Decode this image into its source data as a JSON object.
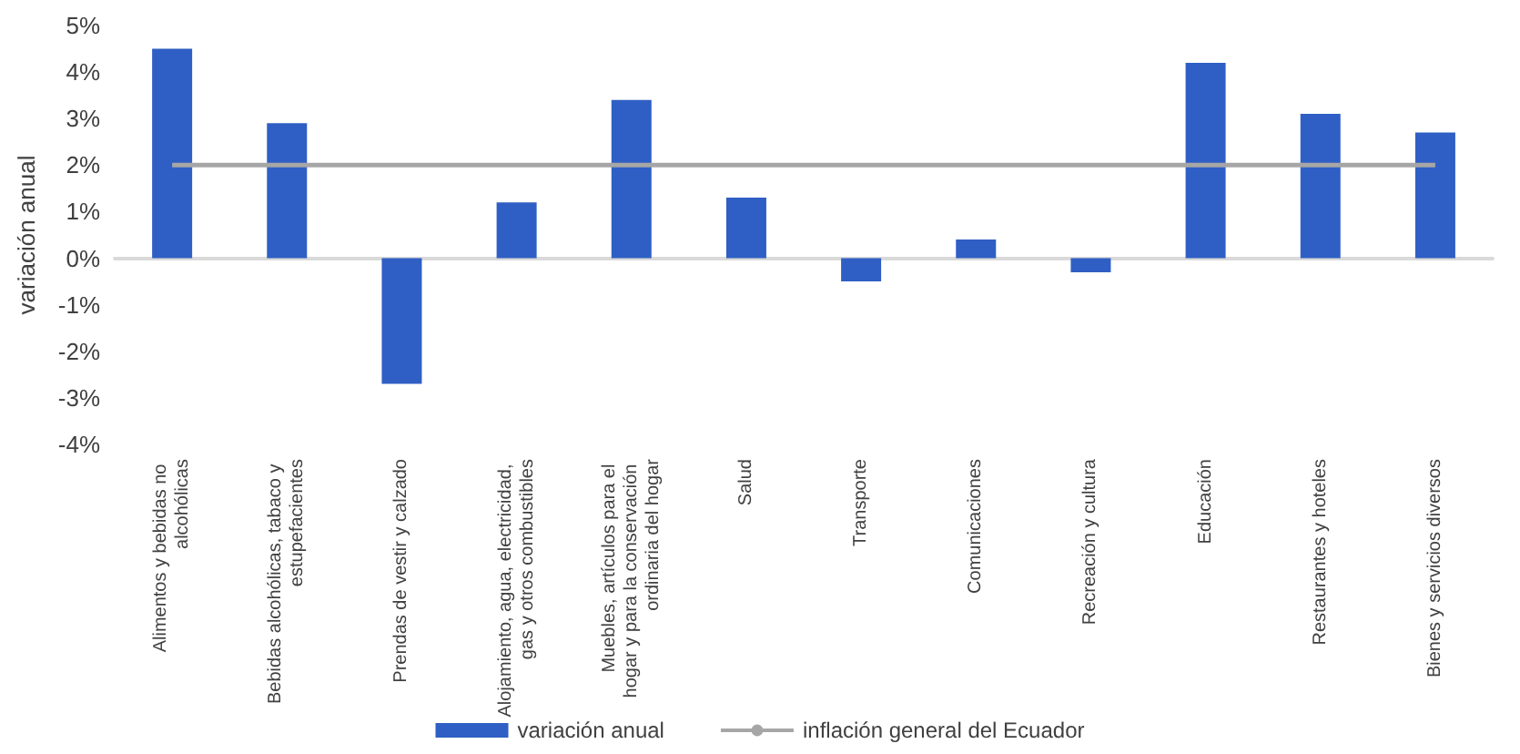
{
  "chart_data": {
    "type": "bar",
    "ylabel": "variación anual",
    "categories": [
      "Alimentos y bebidas no alcohólicas",
      "Bebidas alcohólicas, tabaco y estupefacientes",
      "Prendas de vestir y calzado",
      "Alojamiento, agua, electricidad, gas y otros combustibles",
      "Muebles, artículos para el hogar y para la conservación ordinaria del hogar",
      "Salud",
      "Transporte",
      "Comunicaciones",
      "Recreación y cultura",
      "Educación",
      "Restaurantes y hoteles",
      "Bienes y servicios diversos"
    ],
    "series": [
      {
        "name": "variación anual",
        "color": "#2f5fc4",
        "values": [
          4.5,
          2.9,
          -2.7,
          1.2,
          3.4,
          1.3,
          -0.5,
          0.4,
          -0.3,
          4.2,
          3.1,
          2.7
        ]
      },
      {
        "name": "inflación general del Ecuador",
        "type": "line",
        "color": "#a6a6a6",
        "values": [
          2,
          2,
          2,
          2,
          2,
          2,
          2,
          2,
          2,
          2,
          2,
          2
        ]
      }
    ],
    "ylim": [
      -4,
      5
    ],
    "yticks": [
      {
        "value": -4,
        "label": "-4%"
      },
      {
        "value": -3,
        "label": "-3%"
      },
      {
        "value": -2,
        "label": "-2%"
      },
      {
        "value": -1,
        "label": "-1%"
      },
      {
        "value": 0,
        "label": "0%"
      },
      {
        "value": 1,
        "label": "1%"
      },
      {
        "value": 2,
        "label": "2%"
      },
      {
        "value": 3,
        "label": "3%"
      },
      {
        "value": 4,
        "label": "4%"
      },
      {
        "value": 5,
        "label": "5%"
      }
    ],
    "legend": "bottom",
    "marker": "none"
  }
}
